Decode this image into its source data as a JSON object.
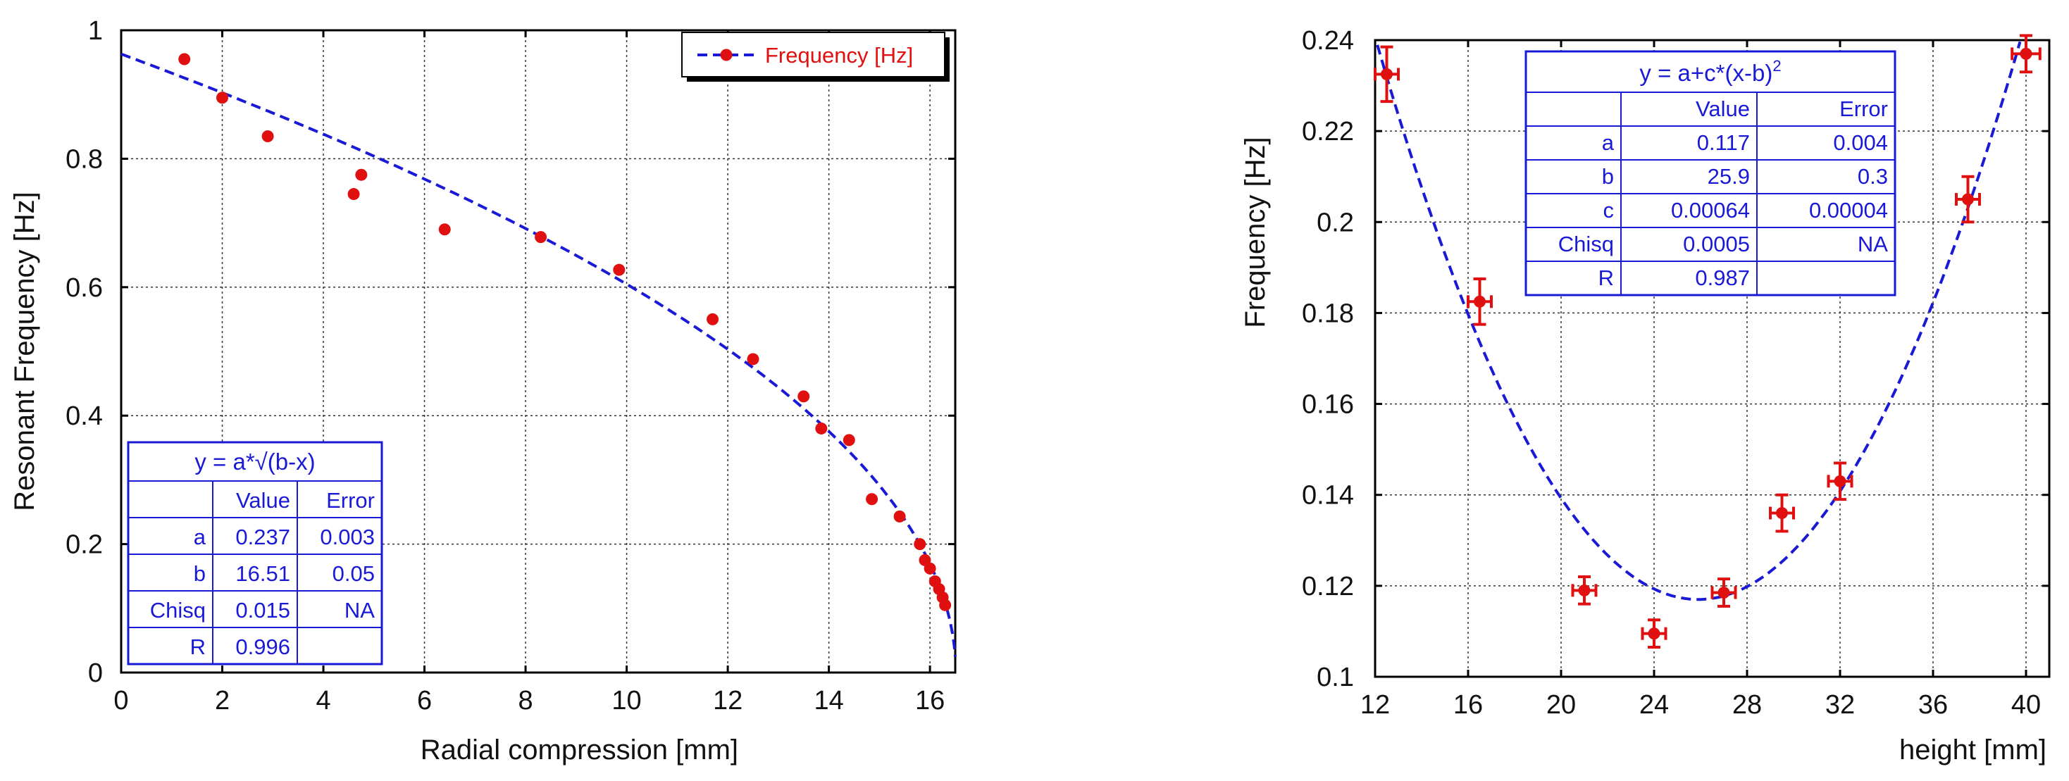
{
  "chart_data": [
    {
      "type": "scatter",
      "xlabel": "Radial compression [mm]",
      "ylabel": "Resonant Frequency [Hz]",
      "xlim": [
        0,
        16.5
      ],
      "ylim": [
        0,
        1
      ],
      "xticks": [
        0,
        2,
        4,
        6,
        8,
        10,
        12,
        14,
        16
      ],
      "yticks": [
        0,
        0.2,
        0.4,
        0.6,
        0.8,
        1
      ],
      "xtick_labels": [
        "0",
        "2",
        "4",
        "6",
        "8",
        "10",
        "12",
        "14",
        "16"
      ],
      "ytick_labels": [
        "0",
        "0.2",
        "0.4",
        "0.6",
        "0.8",
        "1"
      ],
      "legend": {
        "label": "Frequency [Hz]",
        "position": "top-right"
      },
      "series": [
        {
          "name": "Frequency [Hz]",
          "points": [
            {
              "x": 1.25,
              "y": 0.955
            },
            {
              "x": 2.0,
              "y": 0.895
            },
            {
              "x": 2.9,
              "y": 0.835
            },
            {
              "x": 4.6,
              "y": 0.745
            },
            {
              "x": 4.75,
              "y": 0.775
            },
            {
              "x": 6.4,
              "y": 0.69
            },
            {
              "x": 8.3,
              "y": 0.678
            },
            {
              "x": 9.85,
              "y": 0.627
            },
            {
              "x": 11.7,
              "y": 0.55
            },
            {
              "x": 12.5,
              "y": 0.488
            },
            {
              "x": 13.5,
              "y": 0.43
            },
            {
              "x": 13.85,
              "y": 0.38
            },
            {
              "x": 14.4,
              "y": 0.362
            },
            {
              "x": 14.85,
              "y": 0.27
            },
            {
              "x": 15.4,
              "y": 0.243
            },
            {
              "x": 15.8,
              "y": 0.2
            },
            {
              "x": 15.9,
              "y": 0.175
            },
            {
              "x": 16.0,
              "y": 0.162
            },
            {
              "x": 16.1,
              "y": 0.142
            },
            {
              "x": 16.18,
              "y": 0.13
            },
            {
              "x": 16.25,
              "y": 0.117
            },
            {
              "x": 16.3,
              "y": 0.105
            }
          ]
        }
      ],
      "fit": {
        "formula": "y = a*√(b-x)",
        "model": "sqrt",
        "params": {
          "a": 0.237,
          "b": 16.51
        },
        "table": {
          "header": [
            "",
            "Value",
            "Error"
          ],
          "rows": [
            [
              "a",
              "0.237",
              "0.003"
            ],
            [
              "b",
              "16.51",
              "0.05"
            ],
            [
              "Chisq",
              "0.015",
              "NA"
            ],
            [
              "R",
              "0.996",
              ""
            ]
          ]
        }
      }
    },
    {
      "type": "scatter",
      "xlabel": "height [mm]",
      "ylabel": "Frequency [Hz]",
      "xlim": [
        12,
        41
      ],
      "ylim": [
        0.1,
        0.24
      ],
      "xticks": [
        12,
        16,
        20,
        24,
        28,
        32,
        36,
        40
      ],
      "yticks": [
        0.1,
        0.12,
        0.14,
        0.16,
        0.18,
        0.2,
        0.22,
        0.24
      ],
      "xtick_labels": [
        "12",
        "16",
        "20",
        "24",
        "28",
        "32",
        "36",
        "40"
      ],
      "ytick_labels": [
        "0.1",
        "0.12",
        "0.14",
        "0.16",
        "0.18",
        "0.2",
        "0.22",
        "0.24"
      ],
      "series": [
        {
          "name": "Frequency [Hz]",
          "points": [
            {
              "x": 12.5,
              "y": 0.2325,
              "xerr": 0.5,
              "yerr": 0.006
            },
            {
              "x": 16.5,
              "y": 0.1825,
              "xerr": 0.5,
              "yerr": 0.005
            },
            {
              "x": 21.0,
              "y": 0.119,
              "xerr": 0.5,
              "yerr": 0.003
            },
            {
              "x": 24.0,
              "y": 0.1095,
              "xerr": 0.5,
              "yerr": 0.003
            },
            {
              "x": 27.0,
              "y": 0.1185,
              "xerr": 0.5,
              "yerr": 0.003
            },
            {
              "x": 29.5,
              "y": 0.136,
              "xerr": 0.5,
              "yerr": 0.004
            },
            {
              "x": 32.0,
              "y": 0.143,
              "xerr": 0.5,
              "yerr": 0.004
            },
            {
              "x": 37.5,
              "y": 0.205,
              "xerr": 0.5,
              "yerr": 0.005
            },
            {
              "x": 40.0,
              "y": 0.237,
              "xerr": 0.6,
              "yerr": 0.004
            }
          ]
        }
      ],
      "fit": {
        "formula_main": "y = a+c*(x-b)",
        "formula_sup": "2",
        "model": "quadratic",
        "params": {
          "a": 0.117,
          "b": 25.9,
          "c": 0.00064
        },
        "table": {
          "header": [
            "",
            "Value",
            "Error"
          ],
          "rows": [
            [
              "a",
              "0.117",
              "0.004"
            ],
            [
              "b",
              "25.9",
              "0.3"
            ],
            [
              "c",
              "0.00064",
              "0.00004"
            ],
            [
              "Chisq",
              "0.0005",
              "NA"
            ],
            [
              "R",
              "0.987",
              ""
            ]
          ]
        }
      }
    }
  ]
}
